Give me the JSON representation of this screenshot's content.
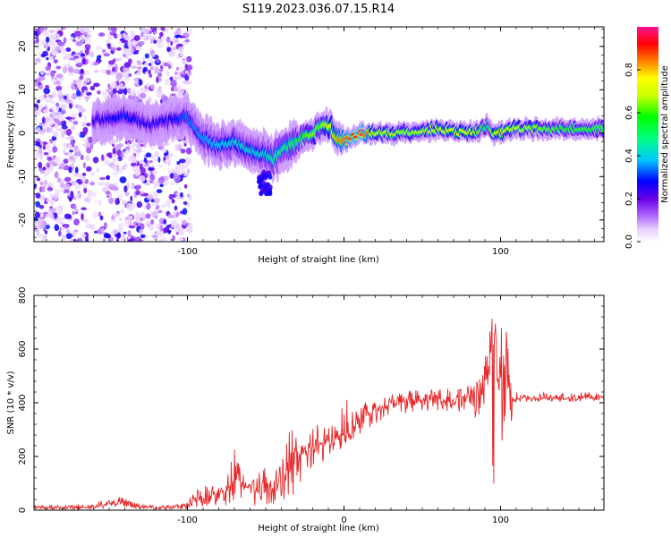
{
  "title": "S119.2023.036.07.15.R14",
  "colors": {
    "snr_line": "#e8282a",
    "axis": "#000000",
    "colormap": [
      "#ffffff",
      "#e6ccff",
      "#b066ff",
      "#6a00e8",
      "#0000ff",
      "#00c8ff",
      "#00ff80",
      "#00ff00",
      "#c8ff00",
      "#ffff00",
      "#ff8000",
      "#ff0000",
      "#ff1493"
    ]
  },
  "chart_data": [
    {
      "type": "heatmap",
      "xlabel": "Height of straight line (km)",
      "ylabel": "Frequency (Hz)",
      "xlim": [
        -198,
        166
      ],
      "ylim": [
        -25,
        24.5
      ],
      "xticks": [
        -100,
        0,
        100
      ],
      "xtick_labels": [
        "-100",
        "",
        "100"
      ],
      "yticks": [
        -20,
        -10,
        0,
        10,
        20
      ],
      "ytick_labels": [
        "-20",
        "-10",
        "0",
        "10",
        "20"
      ],
      "colorbar": {
        "label": "Normalized spectral amplitude",
        "range": [
          0,
          1
        ],
        "ticks": [
          0.0,
          0.2,
          0.4,
          0.6,
          0.8
        ],
        "tick_labels": [
          "0.0",
          "0.2",
          "0.4",
          "0.6",
          "0.8"
        ]
      },
      "ridge": {
        "x": [
          -155,
          -140,
          -125,
          -110,
          -100,
          -90,
          -80,
          -70,
          -60,
          -50,
          -45,
          -40,
          -35,
          -30,
          -25,
          -20,
          -15,
          -12,
          -8,
          -5,
          0,
          5,
          10,
          20,
          40,
          60,
          80,
          88,
          92,
          95,
          100,
          105,
          120,
          140,
          166
        ],
        "y": [
          3,
          4,
          2,
          3,
          4,
          -1,
          -3,
          -2,
          -4,
          -5,
          -6,
          -4,
          -3,
          -2,
          -1,
          0,
          1,
          2,
          1,
          -1,
          -2,
          -1,
          0,
          0,
          0,
          1,
          0,
          1,
          2,
          0,
          0,
          1,
          1,
          1,
          1
        ],
        "amplitude": [
          0.3,
          0.35,
          0.3,
          0.32,
          0.38,
          0.4,
          0.42,
          0.45,
          0.45,
          0.45,
          0.5,
          0.5,
          0.52,
          0.55,
          0.6,
          0.65,
          0.6,
          0.7,
          0.75,
          0.8,
          0.85,
          0.9,
          0.95,
          0.7,
          0.65,
          0.7,
          0.75,
          0.6,
          0.5,
          0.7,
          0.8,
          0.7,
          0.65,
          0.6,
          0.6
        ]
      }
    },
    {
      "type": "line",
      "xlabel": "Height of straight line (km)",
      "ylabel": "SNR (10 * v/v)",
      "xlim": [
        -198,
        166
      ],
      "ylim": [
        0,
        800
      ],
      "xticks": [
        -100,
        0,
        100
      ],
      "xtick_labels": [
        "-100",
        "0",
        "100"
      ],
      "yticks": [
        0,
        200,
        400,
        600,
        800
      ],
      "ytick_labels": [
        "0",
        "200",
        "400",
        "600",
        "800"
      ],
      "series": [
        {
          "x": [
            -198,
            -180,
            -160,
            -150,
            -140,
            -130,
            -120,
            -110,
            -100,
            -95,
            -90,
            -85,
            -80,
            -75,
            -70,
            -65,
            -60,
            -55,
            -50,
            -45,
            -40,
            -35,
            -30,
            -25,
            -20,
            -15,
            -10,
            -5,
            0,
            5,
            10,
            15,
            20,
            25,
            30,
            40,
            50,
            60,
            70,
            80,
            85,
            90,
            93,
            95,
            97,
            100,
            102,
            105,
            108,
            110,
            120,
            130,
            140,
            150,
            166
          ],
          "values": [
            10,
            8,
            10,
            25,
            30,
            12,
            8,
            10,
            20,
            35,
            45,
            55,
            65,
            70,
            120,
            90,
            80,
            70,
            95,
            80,
            100,
            150,
            190,
            220,
            235,
            250,
            260,
            270,
            290,
            310,
            340,
            360,
            370,
            385,
            395,
            405,
            410,
            415,
            410,
            420,
            425,
            430,
            560,
            640,
            650,
            420,
            560,
            520,
            410,
            415,
            415,
            420,
            415,
            420,
            420
          ],
          "high": [
            20,
            20,
            25,
            45,
            50,
            25,
            15,
            20,
            40,
            70,
            90,
            110,
            130,
            150,
            240,
            160,
            120,
            140,
            160,
            180,
            200,
            330,
            320,
            360,
            340,
            320,
            330,
            340,
            420,
            400,
            410,
            420,
            420,
            430,
            440,
            445,
            450,
            450,
            455,
            470,
            490,
            560,
            790,
            800,
            720,
            790,
            770,
            660,
            470,
            440,
            430,
            440,
            435,
            440,
            440
          ],
          "low": [
            2,
            2,
            2,
            10,
            10,
            2,
            2,
            2,
            5,
            10,
            15,
            20,
            20,
            10,
            30,
            20,
            30,
            10,
            20,
            20,
            40,
            40,
            60,
            130,
            160,
            170,
            200,
            200,
            230,
            260,
            280,
            300,
            320,
            330,
            350,
            360,
            370,
            370,
            370,
            360,
            330,
            150,
            60,
            40,
            40,
            50,
            90,
            200,
            400,
            400,
            405,
            405,
            400,
            405,
            405
          ]
        }
      ]
    }
  ]
}
